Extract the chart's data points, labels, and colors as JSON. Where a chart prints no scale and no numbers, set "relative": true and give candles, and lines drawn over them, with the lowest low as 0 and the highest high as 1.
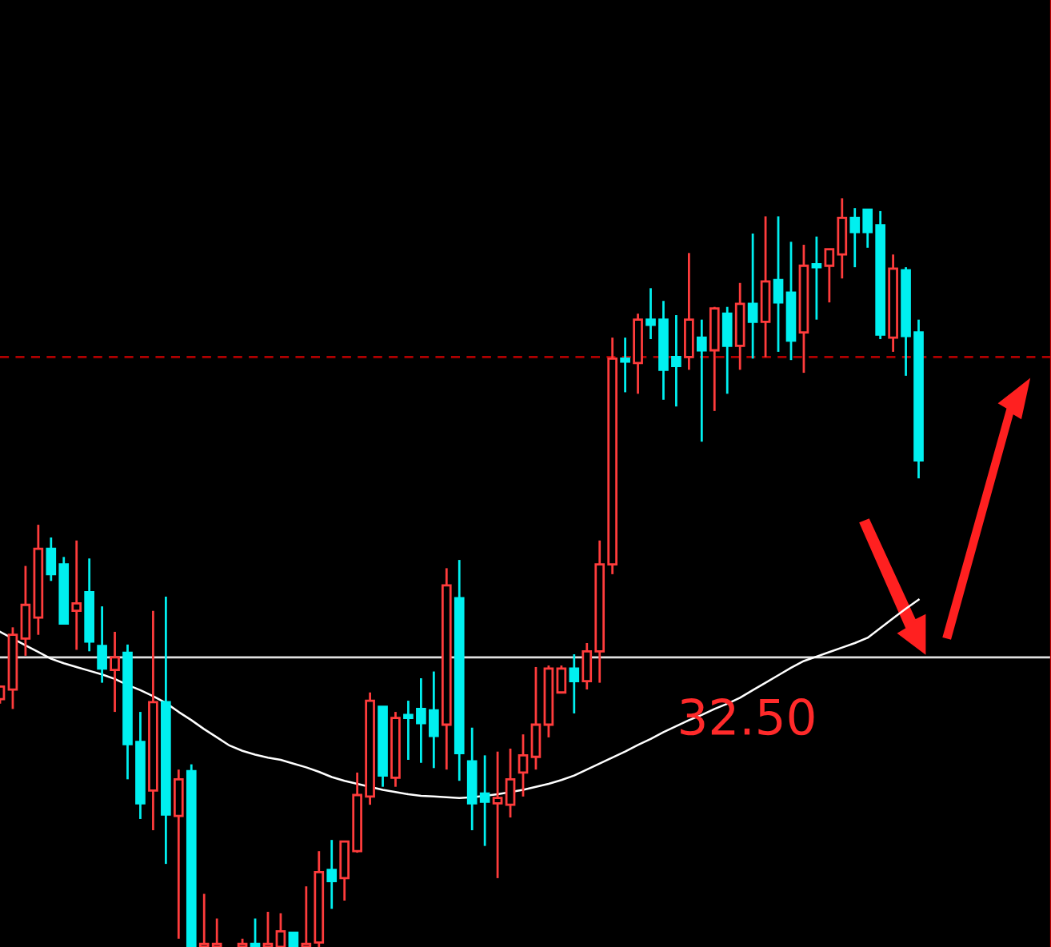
{
  "chart_data": {
    "type": "candlestick",
    "relative": true,
    "categories": [
      null,
      null,
      null,
      null,
      null,
      null,
      null,
      null,
      null,
      null,
      null,
      null,
      null,
      null,
      null,
      null,
      null,
      null,
      null,
      null,
      null,
      null,
      null,
      null,
      null,
      null,
      null,
      null,
      null,
      null,
      null,
      null,
      null,
      null,
      null,
      null,
      null,
      null,
      null,
      null,
      null,
      null,
      null,
      null,
      null,
      null,
      null,
      null,
      null,
      null,
      null,
      null,
      null,
      null,
      null,
      null,
      null,
      null,
      null,
      null,
      null,
      null,
      null,
      null,
      null,
      null,
      null,
      null,
      null,
      null,
      null,
      null,
      null
    ],
    "colors": [
      "#ff3c3c",
      "#ff3c3c",
      "#ff3c3c",
      "#ff3c3c",
      "#00f0f0",
      "#00f0f0",
      "#ff3c3c",
      "#00f0f0",
      "#00f0f0",
      "#ff3c3c",
      "#00f0f0",
      "#00f0f0",
      "#ff3c3c",
      "#00f0f0",
      "#ff3c3c",
      "#00f0f0",
      "#ff3c3c",
      "#ff3c3c",
      null,
      "#ff3c3c",
      "#00f0f0",
      "#ff3c3c",
      "#ff3c3c",
      "#00f0f0",
      "#ff3c3c",
      "#ff3c3c",
      "#00f0f0",
      "#ff3c3c",
      "#ff3c3c",
      "#ff3c3c",
      "#00f0f0",
      "#ff3c3c",
      "#00f0f0",
      "#00f0f0",
      "#00f0f0",
      "#ff3c3c",
      "#00f0f0",
      "#00f0f0",
      "#00f0f0",
      "#ff3c3c",
      "#ff3c3c",
      "#ff3c3c",
      "#ff3c3c",
      "#ff3c3c",
      "#ff3c3c",
      "#00f0f0",
      "#ff3c3c",
      "#ff3c3c",
      "#ff3c3c",
      "#00f0f0",
      "#ff3c3c",
      "#00f0f0",
      "#00f0f0",
      "#00f0f0",
      "#ff3c3c",
      "#00f0f0",
      "#ff3c3c",
      "#00f0f0",
      "#ff3c3c",
      "#00f0f0",
      "#ff3c3c",
      "#00f0f0",
      "#00f0f0",
      "#ff3c3c",
      "#00f0f0",
      "#ff3c3c",
      "#ff3c3c",
      "#00f0f0",
      "#00f0f0",
      "#00f0f0",
      "#ff3c3c",
      "#00f0f0",
      "#00f0f0"
    ],
    "ohlc": [
      [
        0.331,
        0.348,
        0.325,
        0.348
      ],
      [
        0.344,
        0.427,
        0.318,
        0.417
      ],
      [
        0.412,
        0.509,
        0.389,
        0.457
      ],
      [
        0.44,
        0.564,
        0.417,
        0.532
      ],
      [
        0.532,
        0.547,
        0.489,
        0.498
      ],
      [
        0.511,
        0.521,
        0.432,
        0.432
      ],
      [
        0.449,
        0.543,
        0.397,
        0.459
      ],
      [
        0.474,
        0.519,
        0.395,
        0.408
      ],
      [
        0.402,
        0.455,
        0.353,
        0.372
      ],
      [
        0.37,
        0.421,
        0.314,
        0.387
      ],
      [
        0.393,
        0.404,
        0.224,
        0.271
      ],
      [
        0.274,
        0.314,
        0.171,
        0.192
      ],
      [
        0.209,
        0.449,
        0.156,
        0.327
      ],
      [
        0.327,
        0.468,
        0.111,
        0.177
      ],
      [
        0.175,
        0.237,
        0.011,
        0.224
      ],
      [
        0.235,
        0.244,
        0.0,
        0.0
      ],
      [
        0.0,
        0.071,
        0.0,
        0.004
      ],
      [
        0.0,
        0.038,
        0.0,
        0.004
      ],
      null,
      [
        0.0,
        0.011,
        0.0,
        0.004
      ],
      [
        0.004,
        0.038,
        0.0,
        0.0
      ],
      [
        0.0,
        0.047,
        0.0,
        0.004
      ],
      [
        0.0,
        0.045,
        0.0,
        0.021
      ],
      [
        0.019,
        0.019,
        0.0,
        0.0
      ],
      [
        0.0,
        0.081,
        0.0,
        0.004
      ],
      [
        0.006,
        0.128,
        0.0,
        0.1
      ],
      [
        0.103,
        0.143,
        0.051,
        0.088
      ],
      [
        0.092,
        0.141,
        0.062,
        0.141
      ],
      [
        0.128,
        0.233,
        0.126,
        0.203
      ],
      [
        0.201,
        0.34,
        0.19,
        0.329
      ],
      [
        0.321,
        0.321,
        0.214,
        0.229
      ],
      [
        0.226,
        0.314,
        0.214,
        0.306
      ],
      [
        0.31,
        0.329,
        0.25,
        0.306
      ],
      [
        0.318,
        0.359,
        0.246,
        0.299
      ],
      [
        0.316,
        0.368,
        0.239,
        0.282
      ],
      [
        0.297,
        0.506,
        0.237,
        0.483
      ],
      [
        0.466,
        0.517,
        0.222,
        0.259
      ],
      [
        0.248,
        0.293,
        0.156,
        0.192
      ],
      [
        0.205,
        0.256,
        0.135,
        0.194
      ],
      [
        0.192,
        0.261,
        0.092,
        0.199
      ],
      [
        0.19,
        0.265,
        0.173,
        0.224
      ],
      [
        0.233,
        0.284,
        0.201,
        0.256
      ],
      [
        0.254,
        0.374,
        0.237,
        0.297
      ],
      [
        0.297,
        0.376,
        0.28,
        0.372
      ],
      [
        0.34,
        0.376,
        0.34,
        0.372
      ],
      [
        0.372,
        0.391,
        0.312,
        0.355
      ],
      [
        0.355,
        0.406,
        0.344,
        0.395
      ],
      [
        0.395,
        0.543,
        0.353,
        0.511
      ],
      [
        0.511,
        0.814,
        0.498,
        0.786
      ],
      [
        0.786,
        0.814,
        0.741,
        0.782
      ],
      [
        0.78,
        0.846,
        0.739,
        0.838
      ],
      [
        0.838,
        0.88,
        0.812,
        0.831
      ],
      [
        0.838,
        0.863,
        0.731,
        0.771
      ],
      [
        0.788,
        0.844,
        0.722,
        0.776
      ],
      [
        0.788,
        0.927,
        0.771,
        0.838
      ],
      [
        0.814,
        0.838,
        0.675,
        0.797
      ],
      [
        0.797,
        0.855,
        0.716,
        0.853
      ],
      [
        0.846,
        0.855,
        0.739,
        0.803
      ],
      [
        0.803,
        0.887,
        0.771,
        0.859
      ],
      [
        0.859,
        0.953,
        0.786,
        0.835
      ],
      [
        0.835,
        0.976,
        0.788,
        0.889
      ],
      [
        0.891,
        0.976,
        0.795,
        0.861
      ],
      [
        0.874,
        0.942,
        0.784,
        0.81
      ],
      [
        0.821,
        0.938,
        0.767,
        0.91
      ],
      [
        0.912,
        0.949,
        0.838,
        0.908
      ],
      [
        0.91,
        0.932,
        0.861,
        0.932
      ],
      [
        0.925,
        1.0,
        0.893,
        0.974
      ],
      [
        0.974,
        0.987,
        0.908,
        0.955
      ],
      [
        0.985,
        0.985,
        0.934,
        0.955
      ],
      [
        0.964,
        0.983,
        0.812,
        0.818
      ],
      [
        0.814,
        0.925,
        0.795,
        0.906
      ],
      [
        0.904,
        0.908,
        0.763,
        0.816
      ],
      [
        0.821,
        0.838,
        0.626,
        0.65
      ]
    ],
    "series": [
      {
        "type": "line",
        "color": "#ffffff",
        "values": [
          0.421,
          0.412,
          0.403,
          0.394,
          0.385,
          0.379,
          0.374,
          0.369,
          0.364,
          0.358,
          0.35,
          0.343,
          0.335,
          0.326,
          0.314,
          0.303,
          0.291,
          0.28,
          0.269,
          0.262,
          0.257,
          0.253,
          0.25,
          0.245,
          0.24,
          0.234,
          0.227,
          0.222,
          0.218,
          0.214,
          0.21,
          0.207,
          0.204,
          0.202,
          0.201,
          0.2,
          0.199,
          0.2,
          0.202,
          0.204,
          0.207,
          0.21,
          0.214,
          0.218,
          0.223,
          0.229,
          0.237,
          0.245,
          0.253,
          0.261,
          0.27,
          0.278,
          0.287,
          0.295,
          0.303,
          0.31,
          0.318,
          0.325,
          0.333,
          0.343,
          0.353,
          0.363,
          0.373,
          0.382,
          0.388,
          0.394,
          0.4,
          0.406,
          0.413,
          0.426,
          0.439,
          0.452,
          0.464
        ]
      }
    ],
    "annotations": [
      "32.50"
    ],
    "ref_lines": [
      {
        "axis": "y",
        "value": 0.788,
        "color": "#b00000",
        "line_style": "dashed"
      },
      {
        "axis": "y",
        "value": 0.387,
        "color": "#e0e0e0",
        "line_style": "solid"
      }
    ],
    "grid": false,
    "legend": false
  }
}
